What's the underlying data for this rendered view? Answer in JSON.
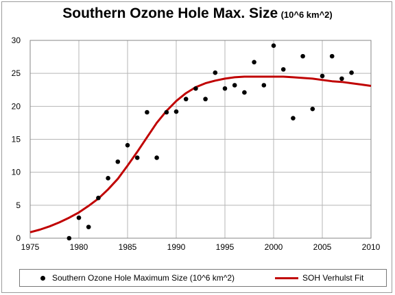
{
  "title": {
    "main": "Southern Ozone Hole Max. Size",
    "sub": "(10^6 km^2)"
  },
  "colors": {
    "points": "#000000",
    "fit": "#c00000",
    "grid": "#b5b5b5"
  },
  "chart_data": {
    "type": "scatter",
    "title": "Southern Ozone Hole Max. Size (10^6 km^2)",
    "xlabel": "",
    "ylabel": "",
    "xlim": [
      1975,
      2010
    ],
    "ylim": [
      0,
      30
    ],
    "xticks": [
      1975,
      1980,
      1985,
      1990,
      1995,
      2000,
      2005,
      2010
    ],
    "yticks": [
      0,
      5,
      10,
      15,
      20,
      25,
      30
    ],
    "grid": true,
    "legend_position": "bottom",
    "series": [
      {
        "name": "Southern Ozone Hole Maximum Size (10^6 km^2)",
        "kind": "scatter",
        "marker": "circle",
        "x": [
          1979,
          1980,
          1981,
          1982,
          1983,
          1984,
          1985,
          1986,
          1987,
          1988,
          1989,
          1990,
          1991,
          1992,
          1993,
          1994,
          1995,
          1996,
          1997,
          1998,
          1999,
          2000,
          2001,
          2002,
          2003,
          2004,
          2005,
          2006,
          2007,
          2008
        ],
        "y": [
          0.0,
          3.1,
          1.7,
          6.1,
          9.1,
          11.6,
          14.1,
          12.2,
          19.1,
          12.2,
          19.1,
          19.2,
          21.1,
          22.7,
          21.1,
          25.1,
          22.7,
          23.2,
          22.1,
          26.7,
          23.2,
          29.2,
          25.6,
          18.2,
          27.6,
          19.6,
          24.6,
          27.6,
          24.2,
          25.1
        ]
      },
      {
        "name": "SOH Verhulst Fit",
        "kind": "line",
        "x": [
          1975,
          1976,
          1977,
          1978,
          1979,
          1980,
          1981,
          1982,
          1983,
          1984,
          1985,
          1986,
          1987,
          1988,
          1989,
          1990,
          1991,
          1992,
          1993,
          1994,
          1995,
          1996,
          1997,
          1998,
          1999,
          2000,
          2001,
          2002,
          2003,
          2004,
          2005,
          2006,
          2007,
          2008,
          2009,
          2010
        ],
        "y": [
          0.9,
          1.3,
          1.8,
          2.4,
          3.1,
          3.9,
          4.9,
          6.0,
          7.4,
          9.0,
          11.0,
          13.1,
          15.3,
          17.5,
          19.3,
          20.8,
          22.0,
          22.9,
          23.5,
          23.9,
          24.2,
          24.4,
          24.5,
          24.5,
          24.5,
          24.5,
          24.5,
          24.4,
          24.3,
          24.2,
          24.0,
          23.8,
          23.7,
          23.5,
          23.3,
          23.1
        ]
      }
    ]
  }
}
